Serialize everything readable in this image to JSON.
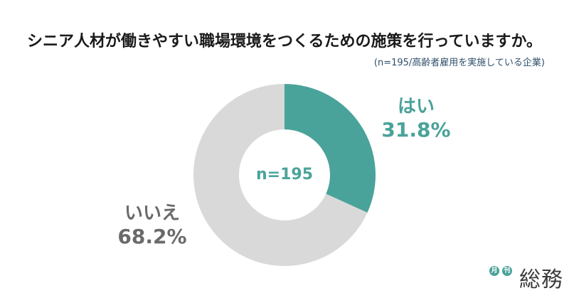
{
  "header": {
    "title": "シニア人材が働きやすい職場環境をつくるための施策を行っていますか。",
    "subtitle": "(n=195/高齢者雇用を実施している企業)"
  },
  "chart_data": {
    "type": "pie",
    "donut": true,
    "center_label": "n=195",
    "slices": [
      {
        "label": "はい",
        "value": 31.8,
        "value_label": "31.8%",
        "color": "#4aa39a"
      },
      {
        "label": "いいえ",
        "value": 68.2,
        "value_label": "68.2%",
        "color": "#d9d9d9"
      }
    ]
  },
  "brand": {
    "badge1": "月",
    "badge2": "刊",
    "name": "総務",
    "color": "#4aa39a"
  }
}
